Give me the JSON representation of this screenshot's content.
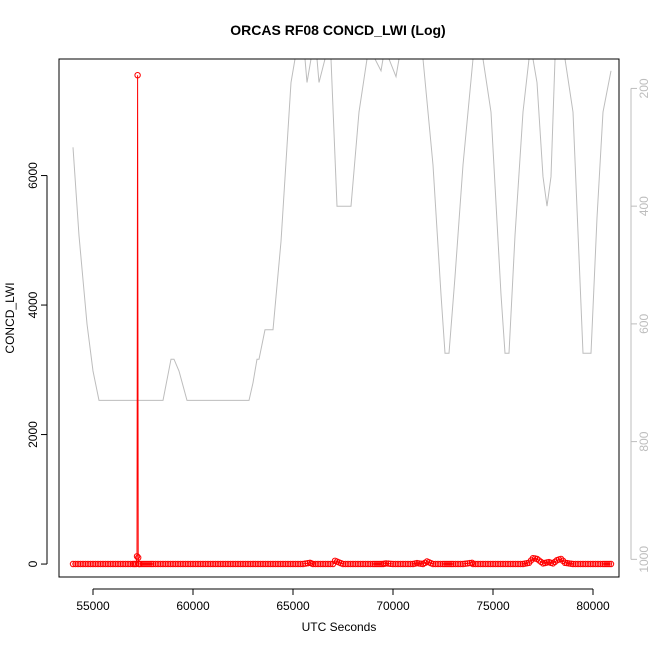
{
  "chart_data": {
    "type": "scatter",
    "title": "ORCAS RF08 CONCD_LWI (Log)",
    "xlabel": "UTC Seconds",
    "ylabel": "CONCD_LWI",
    "xlim": [
      53300,
      81300
    ],
    "ylim": [
      -200,
      7800
    ],
    "x_ticks": [
      55000,
      60000,
      65000,
      70000,
      75000,
      80000
    ],
    "y_ticks": [
      0,
      2000,
      4000,
      6000
    ],
    "y2_ticks": [
      200,
      400,
      600,
      800,
      1000
    ],
    "y2_range": [
      150,
      1030
    ],
    "y2_reversed": true,
    "grid": false,
    "colors": {
      "series": "#ff0000",
      "secondary": "#bdbdbd",
      "axis": "#000000"
    },
    "series": [
      {
        "style": "points-and-line",
        "color": "#ff0000",
        "x": [
          54000,
          54500,
          55000,
          55500,
          56000,
          56500,
          57000,
          57150,
          57200,
          57230,
          57260,
          57290,
          57320,
          57400,
          57700,
          58000,
          58500,
          59000,
          59500,
          60000,
          60500,
          61000,
          61500,
          62000,
          62500,
          63000,
          63500,
          64000,
          64500,
          65000,
          65500,
          65850,
          66000,
          66500,
          67000,
          67100,
          67500,
          68000,
          68500,
          69000,
          69500,
          69650,
          70000,
          70500,
          71000,
          71200,
          71500,
          71700,
          72000,
          72500,
          73000,
          73500,
          73950,
          74000,
          74500,
          75000,
          75500,
          76000,
          76500,
          76800,
          77000,
          77200,
          77500,
          77800,
          78000,
          78200,
          78400,
          78600,
          79000,
          79500,
          80000,
          80500,
          80900
        ],
        "y": [
          0,
          0,
          0,
          0,
          0,
          0,
          0,
          0,
          120,
          7550,
          100,
          0,
          0,
          0,
          0,
          0,
          0,
          0,
          0,
          0,
          0,
          0,
          0,
          0,
          0,
          0,
          0,
          0,
          0,
          0,
          0,
          20,
          0,
          0,
          0,
          50,
          0,
          0,
          0,
          0,
          0,
          10,
          0,
          0,
          0,
          15,
          0,
          40,
          0,
          0,
          0,
          0,
          20,
          0,
          0,
          0,
          0,
          0,
          0,
          20,
          90,
          80,
          10,
          30,
          10,
          60,
          80,
          20,
          0,
          0,
          0,
          0,
          0
        ]
      },
      {
        "style": "line",
        "color": "#bdbdbd",
        "axis": "secondary",
        "x": [
          54000,
          54300,
          54700,
          55000,
          55300,
          56000,
          57000,
          58000,
          58500,
          58900,
          59050,
          59300,
          59700,
          60000,
          61000,
          62000,
          62800,
          63000,
          63200,
          63300,
          63600,
          64000,
          64400,
          64900,
          65100,
          65600,
          65700,
          65900,
          66200,
          66300,
          66600,
          66900,
          67200,
          67500,
          67900,
          68300,
          68700,
          69100,
          69400,
          69500,
          69800,
          70150,
          70300,
          70500,
          70900,
          71500,
          72000,
          72400,
          72600,
          72800,
          73100,
          73500,
          74000,
          74500,
          74900,
          75400,
          75600,
          75800,
          76100,
          76500,
          76800,
          77000,
          77200,
          77500,
          77700,
          77900,
          78100,
          78300,
          78600,
          79000,
          79500,
          79700,
          79900,
          80200,
          80500,
          80900
        ],
        "y": [
          300,
          450,
          600,
          680,
          730,
          730,
          730,
          730,
          730,
          660,
          660,
          680,
          730,
          730,
          730,
          730,
          730,
          700,
          660,
          660,
          610,
          610,
          460,
          190,
          150,
          150,
          190,
          150,
          150,
          190,
          150,
          150,
          400,
          400,
          400,
          240,
          150,
          150,
          170,
          150,
          150,
          180,
          150,
          150,
          150,
          150,
          330,
          550,
          650,
          650,
          520,
          330,
          150,
          150,
          240,
          550,
          650,
          650,
          450,
          240,
          150,
          150,
          190,
          350,
          400,
          350,
          150,
          150,
          150,
          240,
          650,
          650,
          650,
          420,
          240,
          170
        ]
      }
    ]
  }
}
